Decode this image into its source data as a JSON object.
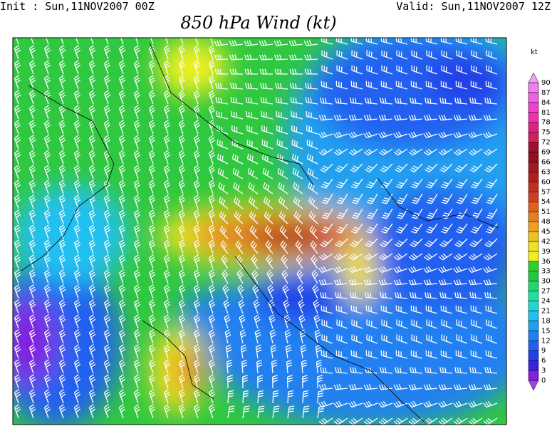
{
  "header": {
    "init": "Init : Sun,11NOV2007 00Z",
    "valid": "Valid: Sun,11NOV2007 12Z",
    "title": "850 hPa Wind (kt)"
  },
  "colorbar": {
    "unit": "kt",
    "levels": [
      0,
      3,
      6,
      9,
      12,
      15,
      18,
      21,
      24,
      27,
      30,
      33,
      36,
      39,
      42,
      45,
      48,
      51,
      54,
      57,
      60,
      63,
      66,
      69,
      72,
      75,
      78,
      81,
      84,
      87,
      90
    ],
    "colors": [
      "#a040e0",
      "#8020e0",
      "#4020e0",
      "#2040e8",
      "#2060f0",
      "#2080f0",
      "#20a0f0",
      "#20c0f0",
      "#20d8d0",
      "#20e0a0",
      "#20d870",
      "#20c840",
      "#30d030",
      "#f0f020",
      "#f0e020",
      "#f0c020",
      "#f0a020",
      "#e08020",
      "#e06020",
      "#d04020",
      "#c03020",
      "#b02020",
      "#a01820",
      "#901020",
      "#a01030",
      "#d02060",
      "#e02080",
      "#f030b0",
      "#f040d0",
      "#f060e0",
      "#f080f0",
      "#f0a0f0"
    ]
  }
}
